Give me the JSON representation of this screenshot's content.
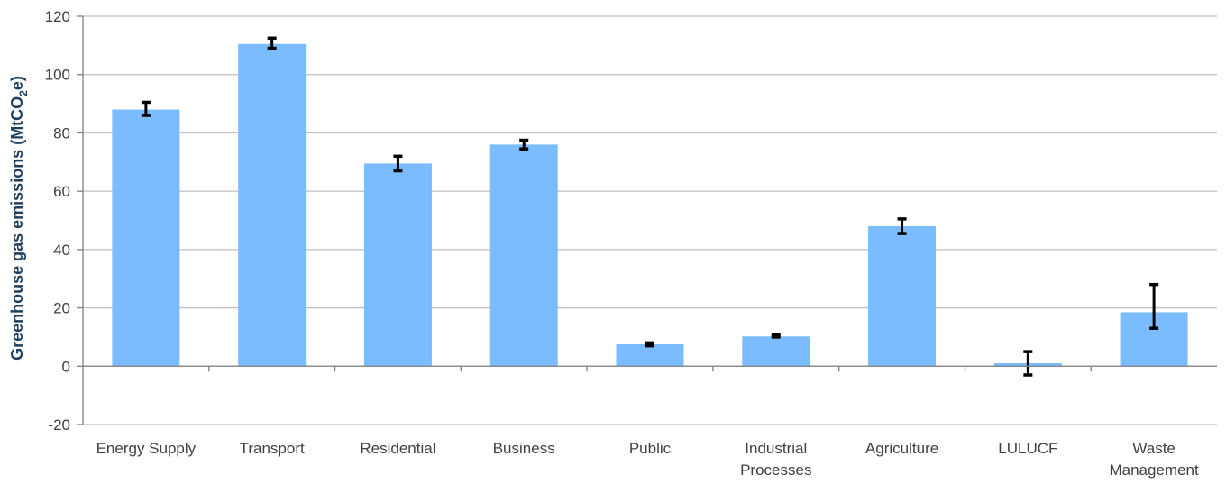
{
  "chart_data": {
    "type": "bar",
    "title": "",
    "xlabel": "",
    "ylabel": "Greenhouse gas emissions (MtCO2e)",
    "ylabel_parts": {
      "main": "Greenhouse gas emissions  (MtCO",
      "sub": "2",
      "tail": "e)"
    },
    "ylim": [
      -20,
      120
    ],
    "yticks": [
      -20,
      0,
      20,
      40,
      60,
      80,
      100,
      120
    ],
    "grid": true,
    "bar_color": "#7abcff",
    "error_color": "#000000",
    "categories": [
      [
        "Energy Supply"
      ],
      [
        "Transport"
      ],
      [
        "Residential"
      ],
      [
        "Business"
      ],
      [
        "Public"
      ],
      [
        "Industrial",
        "Processes"
      ],
      [
        "Agriculture"
      ],
      [
        "LULUCF"
      ],
      [
        "Waste",
        "Management"
      ]
    ],
    "values": [
      88,
      110.5,
      69.5,
      76,
      7.5,
      10.2,
      48,
      1,
      18.5
    ],
    "error_low": [
      86,
      109,
      67,
      74.5,
      7,
      10,
      45.5,
      -3,
      13
    ],
    "error_high": [
      90.5,
      112.5,
      72,
      77.5,
      8,
      10.7,
      50.5,
      5,
      28
    ]
  }
}
